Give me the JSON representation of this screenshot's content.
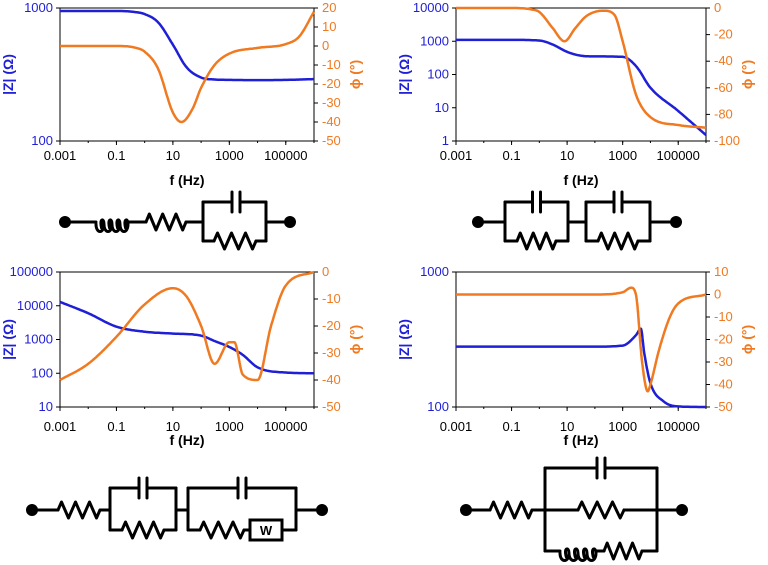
{
  "colors": {
    "magnitude": "#1f1fd6",
    "phase": "#f07a21",
    "axis": "#000000",
    "circuit": "#000000"
  },
  "chart_data": [
    {
      "type": "line",
      "x_scale": "log",
      "x_range": [
        0.001,
        1000000
      ],
      "x_ticks": [
        0.001,
        0.1,
        10,
        1000,
        100000
      ],
      "x_tick_labels": [
        "0.001",
        "0.1",
        "10",
        "1000",
        "100000"
      ],
      "xlabel": "f (Hz)",
      "left_axis": {
        "label": "|Z| (Ω)",
        "scale": "log",
        "range": [
          100,
          1000
        ],
        "ticks": [
          100,
          1000
        ],
        "tick_labels": [
          "100",
          "1000"
        ]
      },
      "right_axis": {
        "label": "ϕ (°)",
        "scale": "linear",
        "range": [
          -50,
          20
        ],
        "ticks": [
          20,
          10,
          0,
          -10,
          -20,
          -30,
          -40,
          -50
        ],
        "tick_labels": [
          "20",
          "10",
          "0",
          "-10",
          "-20",
          "-30",
          "-40",
          "-50"
        ]
      },
      "series": [
        {
          "axis": "left",
          "x": [
            0.001,
            0.1,
            0.5,
            1,
            3,
            10,
            30,
            100,
            300,
            1000,
            10000,
            100000,
            1000000
          ],
          "y": [
            950,
            950,
            930,
            900,
            780,
            530,
            360,
            300,
            290,
            288,
            287,
            288,
            292
          ]
        },
        {
          "axis": "right",
          "x": [
            0.001,
            0.1,
            0.5,
            1,
            3,
            10,
            20,
            50,
            100,
            300,
            1000,
            10000,
            100000,
            300000,
            1000000
          ],
          "y": [
            0,
            0,
            -1,
            -3,
            -12,
            -35,
            -40,
            -33,
            -22,
            -10,
            -4,
            -1,
            1,
            5,
            18
          ]
        }
      ],
      "circuit": [
        "inductor",
        "resistor",
        "R||C"
      ]
    },
    {
      "type": "line",
      "x_scale": "log",
      "x_range": [
        0.001,
        1000000
      ],
      "x_ticks": [
        0.001,
        0.1,
        10,
        1000,
        100000
      ],
      "x_tick_labels": [
        "0.001",
        "0.1",
        "10",
        "1000",
        "100000"
      ],
      "xlabel": "f (Hz)",
      "left_axis": {
        "label": "|Z| (Ω)",
        "scale": "log",
        "range": [
          1,
          10000
        ],
        "ticks": [
          1,
          10,
          100,
          1000,
          10000
        ],
        "tick_labels": [
          "1",
          "10",
          "100",
          "1000",
          "10000"
        ]
      },
      "right_axis": {
        "label": "ϕ (°)",
        "scale": "linear",
        "range": [
          -100,
          0
        ],
        "ticks": [
          0,
          -20,
          -40,
          -60,
          -80,
          -100
        ],
        "tick_labels": [
          "0",
          "-20",
          "-40",
          "-60",
          "-80",
          "-100"
        ]
      },
      "series": [
        {
          "axis": "left",
          "x": [
            0.001,
            0.1,
            1,
            3,
            10,
            30,
            100,
            1000,
            3000,
            10000,
            100000,
            1000000
          ],
          "y": [
            1100,
            1100,
            1050,
            800,
            480,
            370,
            350,
            340,
            180,
            40,
            8,
            1.5
          ]
        },
        {
          "axis": "right",
          "x": [
            0.001,
            0.1,
            0.5,
            1,
            3,
            8,
            20,
            50,
            200,
            500,
            1000,
            3000,
            10000,
            100000,
            1000000
          ],
          "y": [
            0,
            0,
            -1,
            -3,
            -15,
            -25,
            -15,
            -6,
            -2,
            -5,
            -25,
            -65,
            -82,
            -88,
            -90
          ]
        }
      ],
      "circuit": [
        "R||C",
        "R||C"
      ]
    },
    {
      "type": "line",
      "x_scale": "log",
      "x_range": [
        0.001,
        1000000
      ],
      "x_ticks": [
        0.001,
        0.1,
        10,
        1000,
        100000
      ],
      "x_tick_labels": [
        "0.001",
        "0.1",
        "10",
        "1000",
        "100000"
      ],
      "xlabel": "f (Hz)",
      "left_axis": {
        "label": "|Z| (Ω)",
        "scale": "log",
        "range": [
          10,
          100000
        ],
        "ticks": [
          10,
          100,
          1000,
          10000,
          100000
        ],
        "tick_labels": [
          "10",
          "100",
          "1000",
          "10000",
          "100000"
        ]
      },
      "right_axis": {
        "label": "ϕ (°)",
        "scale": "linear",
        "range": [
          -50,
          0
        ],
        "ticks": [
          0,
          -10,
          -20,
          -30,
          -40,
          -50
        ],
        "tick_labels": [
          "0",
          "-10",
          "-20",
          "-30",
          "-40",
          "-50"
        ]
      },
      "series": [
        {
          "axis": "left",
          "x": [
            0.001,
            0.01,
            0.1,
            1,
            10,
            100,
            300,
            1000,
            3000,
            10000,
            100000,
            1000000
          ],
          "y": [
            13000,
            6000,
            2400,
            1700,
            1500,
            1300,
            900,
            600,
            350,
            150,
            105,
            100
          ]
        },
        {
          "axis": "right",
          "x": [
            0.001,
            0.01,
            0.1,
            1,
            10,
            30,
            100,
            300,
            1000,
            1500,
            3000,
            10000,
            30000,
            100000,
            1000000
          ],
          "y": [
            -40,
            -34,
            -24,
            -12,
            -6,
            -9,
            -20,
            -34,
            -26,
            -26,
            -38,
            -40,
            -20,
            -5,
            0
          ]
        }
      ],
      "circuit": [
        "resistor",
        "R||C",
        "(R+W)||C"
      ]
    },
    {
      "type": "line",
      "x_scale": "log",
      "x_range": [
        0.001,
        1000000
      ],
      "x_ticks": [
        0.001,
        0.1,
        10,
        1000,
        100000
      ],
      "x_tick_labels": [
        "0.001",
        "0.1",
        "10",
        "1000",
        "100000"
      ],
      "xlabel": "f (Hz)",
      "left_axis": {
        "label": "|Z| (Ω)",
        "scale": "log",
        "range": [
          100,
          1000
        ],
        "ticks": [
          100,
          1000
        ],
        "tick_labels": [
          "100",
          "1000"
        ]
      },
      "right_axis": {
        "label": "ϕ (°)",
        "scale": "linear",
        "range": [
          -50,
          10
        ],
        "ticks": [
          10,
          0,
          -10,
          -20,
          -30,
          -40,
          -50
        ],
        "tick_labels": [
          "10",
          "0",
          "-10",
          "-20",
          "-30",
          "-40",
          "-50"
        ]
      },
      "series": [
        {
          "axis": "left",
          "x": [
            0.001,
            1,
            100,
            1000,
            3000,
            4500,
            6000,
            10000,
            30000,
            100000,
            1000000
          ],
          "y": [
            280,
            280,
            280,
            285,
            340,
            380,
            250,
            150,
            110,
            101,
            100
          ]
        },
        {
          "axis": "right",
          "x": [
            0.001,
            1,
            100,
            1000,
            2000,
            3000,
            5000,
            8000,
            10000,
            20000,
            50000,
            100000,
            1000000
          ],
          "y": [
            0,
            0,
            0,
            1,
            3,
            0,
            -30,
            -43,
            -40,
            -25,
            -10,
            -4,
            0
          ]
        }
      ],
      "circuit": [
        "resistor",
        "C||R||(L+R)"
      ]
    }
  ]
}
